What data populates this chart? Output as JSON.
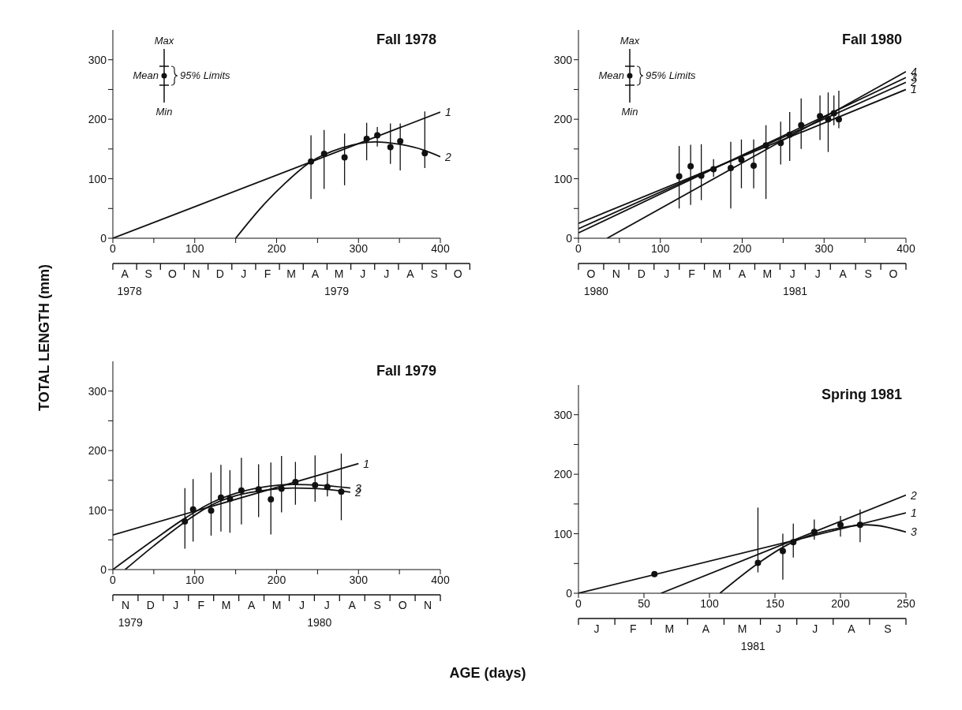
{
  "chart_data": [
    {
      "type": "scatter",
      "title": "Fall 1978",
      "ylabel": "TOTAL LENGTH (mm)",
      "xlim": [
        0,
        400
      ],
      "xticks": [
        0,
        {
          "value": 50,
          "label": null
        },
        100,
        {
          "value": 150,
          "label": null
        },
        200,
        {
          "value": 250,
          "label": null
        },
        300,
        {
          "value": 350,
          "label": null
        },
        400
      ],
      "ylim": [
        0,
        350
      ],
      "yticks": [
        0,
        {
          "value": 50,
          "label": null
        },
        100,
        {
          "value": 150,
          "label": null
        },
        200,
        {
          "value": 250,
          "label": null
        },
        300
      ],
      "annotations": [
        "Max",
        "Mean",
        "95% Limits",
        "Min",
        "A",
        "S",
        "O",
        "N",
        "D",
        "J",
        "F",
        "M",
        "A",
        "M",
        "J",
        "J",
        "A",
        "S",
        "O",
        "1978",
        "1979"
      ],
      "series": [
        {
          "color": "#111111",
          "marker": "circle",
          "x": [
            242,
            258,
            283,
            310,
            323,
            339,
            351,
            381
          ],
          "values": [
            129,
            142,
            136,
            167,
            173,
            153,
            163,
            143
          ],
          "errors": [
            [
              66,
              173
            ],
            [
              83,
              182
            ],
            [
              89,
              176
            ],
            [
              131,
              194
            ],
            [
              154,
              187
            ],
            [
              125,
              193
            ],
            [
              114,
              193
            ],
            [
              118,
              213
            ]
          ]
        },
        {
          "type": "line",
          "name": "1",
          "color": "#111111",
          "x": [
            0,
            400
          ],
          "values": [
            0,
            212
          ]
        },
        {
          "type": "line",
          "name": "2",
          "color": "#111111",
          "x": [
            150,
            182,
            210,
            240,
            280,
            320,
            350,
            380,
            400
          ],
          "values": [
            0,
            53,
            92,
            127,
            152,
            162,
            158,
            148,
            137
          ]
        }
      ]
    },
    {
      "type": "scatter",
      "title": "Fall 1980",
      "xlim": [
        0,
        400
      ],
      "xticks": [
        0,
        {
          "value": 50,
          "label": null
        },
        100,
        {
          "value": 150,
          "label": null
        },
        200,
        {
          "value": 250,
          "label": null
        },
        300,
        {
          "value": 350,
          "label": null
        },
        400
      ],
      "ylim": [
        0,
        350
      ],
      "yticks": [
        0,
        {
          "value": 50,
          "label": null
        },
        100,
        {
          "value": 150,
          "label": null
        },
        200,
        {
          "value": 250,
          "label": null
        },
        300
      ],
      "annotations": [
        "Max",
        "Mean",
        "95% Limits",
        "Min",
        "O",
        "N",
        "D",
        "J",
        "F",
        "M",
        "A",
        "M",
        "J",
        "J",
        "A",
        "S",
        "O",
        "1980",
        "1981"
      ],
      "series": [
        {
          "color": "#111111",
          "marker": "circle",
          "x": [
            123,
            137,
            150,
            165,
            186,
            199,
            214,
            229,
            247,
            258,
            272,
            295,
            305,
            312,
            318
          ],
          "values": [
            104,
            121,
            105,
            116,
            118,
            132,
            122,
            156,
            160,
            174,
            190,
            205,
            200,
            210,
            200
          ],
          "errors": [
            [
              50,
              155
            ],
            [
              56,
              157
            ],
            [
              64,
              158
            ],
            [
              103,
              133
            ],
            [
              50,
              162
            ],
            [
              84,
              166
            ],
            [
              84,
              166
            ],
            [
              66,
              190
            ],
            [
              124,
              196
            ],
            [
              130,
              212
            ],
            [
              150,
              235
            ],
            [
              165,
              240
            ],
            [
              145,
              245
            ],
            [
              190,
              240
            ],
            [
              185,
              248
            ]
          ]
        },
        {
          "type": "line",
          "name": "1",
          "color": "#111111",
          "x": [
            0,
            400
          ],
          "values": [
            25,
            250
          ]
        },
        {
          "type": "line",
          "name": "2",
          "color": "#111111",
          "x": [
            0,
            400
          ],
          "values": [
            16,
            262
          ]
        },
        {
          "type": "line",
          "name": "3",
          "color": "#111111",
          "x": [
            0,
            400
          ],
          "values": [
            9,
            270
          ]
        },
        {
          "type": "line",
          "name": "4",
          "color": "#111111",
          "x": [
            35,
            400
          ],
          "values": [
            0,
            280
          ]
        }
      ]
    },
    {
      "type": "scatter",
      "title": "Fall 1979",
      "xlabel": "AGE (days)",
      "xlim": [
        0,
        400
      ],
      "xticks": [
        0,
        {
          "value": 50,
          "label": null
        },
        100,
        {
          "value": 150,
          "label": null
        },
        200,
        {
          "value": 250,
          "label": null
        },
        300,
        {
          "value": 350,
          "label": null
        },
        400
      ],
      "ylim": [
        0,
        350
      ],
      "yticks": [
        0,
        {
          "value": 50,
          "label": null
        },
        100,
        {
          "value": 150,
          "label": null
        },
        200,
        {
          "value": 250,
          "label": null
        },
        300
      ],
      "annotations": [
        "N",
        "D",
        "J",
        "F",
        "M",
        "A",
        "M",
        "J",
        "J",
        "A",
        "S",
        "O",
        "N",
        "1979",
        "1980"
      ],
      "series": [
        {
          "color": "#111111",
          "marker": "circle",
          "x": [
            88,
            98,
            120,
            132,
            143,
            157,
            178,
            193,
            206,
            223,
            247,
            262,
            279
          ],
          "values": [
            81,
            101,
            99,
            121,
            119,
            133,
            135,
            118,
            136,
            147,
            142,
            139,
            131
          ],
          "errors": [
            [
              35,
              137
            ],
            [
              47,
              152
            ],
            [
              57,
              163
            ],
            [
              64,
              176
            ],
            [
              62,
              167
            ],
            [
              76,
              188
            ],
            [
              88,
              177
            ],
            [
              59,
              180
            ],
            [
              96,
              191
            ],
            [
              109,
              181
            ],
            [
              114,
              192
            ],
            [
              123,
              161
            ],
            [
              83,
              195
            ]
          ]
        },
        {
          "type": "line",
          "name": "1",
          "color": "#111111",
          "x": [
            0,
            300
          ],
          "values": [
            58,
            178
          ]
        },
        {
          "type": "line",
          "name": "3",
          "color": "#111111",
          "x": [
            0,
            50,
            90,
            120,
            150,
            190,
            220,
            250,
            290
          ],
          "values": [
            0,
            50,
            88,
            112,
            128,
            140,
            143,
            142,
            137
          ]
        },
        {
          "type": "line",
          "name": "2",
          "color": "#111111",
          "x": [
            15,
            50,
            90,
            120,
            150,
            190,
            220,
            250,
            290
          ],
          "values": [
            0,
            40,
            82,
            108,
            124,
            134,
            137,
            136,
            130
          ]
        }
      ]
    },
    {
      "type": "scatter",
      "title": "Spring 1981",
      "xlim": [
        0,
        250
      ],
      "xticks": [
        0,
        50,
        100,
        150,
        200,
        250
      ],
      "ylim": [
        0,
        350
      ],
      "yticks": [
        0,
        {
          "value": 50,
          "label": null
        },
        100,
        {
          "value": 150,
          "label": null
        },
        200,
        {
          "value": 250,
          "label": null
        },
        300
      ],
      "annotations": [
        "J",
        "F",
        "M",
        "A",
        "M",
        "J",
        "J",
        "A",
        "S",
        "1981"
      ],
      "series": [
        {
          "color": "#111111",
          "marker": "circle",
          "x": [
            58,
            137,
            156,
            164,
            180,
            200,
            215
          ],
          "values": [
            32,
            51,
            71,
            86,
            103,
            115,
            115
          ],
          "errors": [
            null,
            [
              35,
              144
            ],
            [
              23,
              100
            ],
            [
              60,
              117
            ],
            [
              90,
              124
            ],
            [
              95,
              130
            ],
            [
              86,
              141
            ]
          ]
        },
        {
          "type": "line",
          "name": "2",
          "color": "#111111",
          "x": [
            63,
            250
          ],
          "values": [
            0,
            165
          ]
        },
        {
          "type": "line",
          "name": "1",
          "color": "#111111",
          "x": [
            0,
            250
          ],
          "values": [
            0,
            135
          ]
        },
        {
          "type": "line",
          "name": "3",
          "color": "#111111",
          "x": [
            108,
            137,
            160,
            200,
            220,
            250
          ],
          "values": [
            0,
            50,
            82,
            110,
            115,
            103
          ]
        }
      ]
    }
  ]
}
